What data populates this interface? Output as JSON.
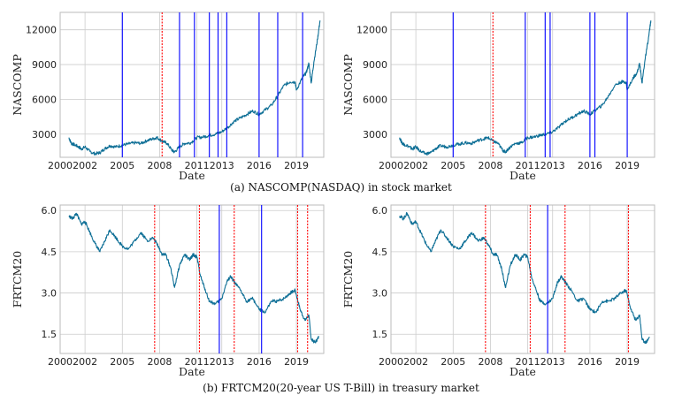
{
  "captions": {
    "a": "(a) NASCOMP(NASDAQ) in stock market",
    "b": "(b) FRTCM20(20-year US T-Bill) in treasury market"
  },
  "colors": {
    "series": "#1f77b4",
    "line_series": "#0e6f96",
    "blue_marker": "#0000ff",
    "red_marker": "#ff0000",
    "grid": "#cccccc"
  },
  "chart_data": [
    {
      "type": "line",
      "title": "",
      "xlabel": "Date",
      "ylabel": "NASCOMP",
      "xlim": [
        2000,
        2021.2
      ],
      "ylim": [
        1000,
        13500
      ],
      "x_ticks": [
        2000,
        2002,
        2005,
        2008,
        2011,
        2013,
        2016,
        2019
      ],
      "y_ticks": [
        3000,
        6000,
        9000,
        12000
      ],
      "series": [
        {
          "name": "NASCOMP",
          "x": [
            2000.7,
            2000.9,
            2001.1,
            2001.5,
            2001.7,
            2002.0,
            2002.4,
            2002.8,
            2003.2,
            2003.6,
            2004.0,
            2004.5,
            2005.0,
            2005.5,
            2006.0,
            2006.5,
            2007.0,
            2007.5,
            2007.8,
            2008.2,
            2008.6,
            2009.0,
            2009.2,
            2009.6,
            2010.0,
            2010.5,
            2011.0,
            2011.5,
            2012.0,
            2012.5,
            2013.0,
            2013.5,
            2014.0,
            2014.5,
            2015.0,
            2015.5,
            2016.0,
            2016.5,
            2017.0,
            2017.5,
            2018.0,
            2018.5,
            2018.9,
            2019.0,
            2019.5,
            2019.8,
            2020.0,
            2020.2,
            2020.4,
            2020.7,
            2020.9
          ],
          "values": [
            2700,
            2200,
            2100,
            1900,
            1700,
            1900,
            1500,
            1300,
            1400,
            1750,
            2000,
            1900,
            2050,
            2150,
            2250,
            2200,
            2450,
            2600,
            2700,
            2400,
            2200,
            1600,
            1450,
            1900,
            2200,
            2250,
            2700,
            2750,
            2900,
            3000,
            3200,
            3600,
            4100,
            4400,
            4700,
            5000,
            4700,
            5100,
            5500,
            6300,
            7200,
            7500,
            7500,
            6800,
            7900,
            8300,
            9100,
            7400,
            9200,
            11200,
            12800
          ]
        }
      ],
      "markers": [
        {
          "x": 2005.0,
          "color": "blue"
        },
        {
          "x": 2008.2,
          "color": "red"
        },
        {
          "x": 2009.6,
          "color": "blue"
        },
        {
          "x": 2010.8,
          "color": "blue"
        },
        {
          "x": 2012.0,
          "color": "blue"
        },
        {
          "x": 2012.7,
          "color": "blue"
        },
        {
          "x": 2013.4,
          "color": "blue"
        },
        {
          "x": 2016.0,
          "color": "blue"
        },
        {
          "x": 2017.5,
          "color": "blue"
        },
        {
          "x": 2019.5,
          "color": "blue"
        }
      ]
    },
    {
      "type": "line",
      "title": "",
      "xlabel": "Date",
      "ylabel": "NASCOMP",
      "xlim": [
        2000,
        2021.2
      ],
      "ylim": [
        1000,
        13500
      ],
      "x_ticks": [
        2000,
        2002,
        2005,
        2008,
        2011,
        2013,
        2016,
        2019
      ],
      "y_ticks": [
        3000,
        6000,
        9000,
        12000
      ],
      "series": [
        {
          "name": "NASCOMP",
          "x": [
            2000.7,
            2000.9,
            2001.1,
            2001.5,
            2001.7,
            2002.0,
            2002.4,
            2002.8,
            2003.2,
            2003.6,
            2004.0,
            2004.5,
            2005.0,
            2005.5,
            2006.0,
            2006.5,
            2007.0,
            2007.5,
            2007.8,
            2008.2,
            2008.6,
            2009.0,
            2009.2,
            2009.6,
            2010.0,
            2010.5,
            2011.0,
            2011.5,
            2012.0,
            2012.5,
            2013.0,
            2013.5,
            2014.0,
            2014.5,
            2015.0,
            2015.5,
            2016.0,
            2016.5,
            2017.0,
            2017.5,
            2018.0,
            2018.5,
            2018.9,
            2019.0,
            2019.5,
            2019.8,
            2020.0,
            2020.2,
            2020.4,
            2020.7,
            2020.9
          ],
          "values": [
            2700,
            2200,
            2100,
            1900,
            1700,
            1900,
            1500,
            1300,
            1400,
            1750,
            2000,
            1900,
            2050,
            2150,
            2250,
            2200,
            2450,
            2600,
            2700,
            2400,
            2200,
            1600,
            1450,
            1900,
            2200,
            2250,
            2700,
            2750,
            2900,
            3000,
            3200,
            3600,
            4100,
            4400,
            4700,
            5000,
            4700,
            5100,
            5500,
            6300,
            7200,
            7500,
            7500,
            6800,
            7900,
            8300,
            9100,
            7400,
            9200,
            11200,
            12800
          ]
        }
      ],
      "markers": [
        {
          "x": 2005.0,
          "color": "blue"
        },
        {
          "x": 2008.2,
          "color": "red"
        },
        {
          "x": 2010.8,
          "color": "blue"
        },
        {
          "x": 2012.4,
          "color": "blue"
        },
        {
          "x": 2012.8,
          "color": "blue"
        },
        {
          "x": 2016.0,
          "color": "blue"
        },
        {
          "x": 2016.4,
          "color": "blue"
        },
        {
          "x": 2019.0,
          "color": "blue"
        }
      ]
    },
    {
      "type": "line",
      "title": "",
      "xlabel": "Date",
      "ylabel": "FRTCM20",
      "xlim": [
        2000,
        2021.2
      ],
      "ylim": [
        0.8,
        6.2
      ],
      "x_ticks": [
        2000,
        2002,
        2005,
        2008,
        2011,
        2013,
        2016,
        2019
      ],
      "y_ticks": [
        1.5,
        3.0,
        4.5,
        6.0
      ],
      "y_tick_labels": [
        "1.5",
        "3.0",
        "4.5",
        "6.0"
      ],
      "series": [
        {
          "name": "FRTCM20",
          "x": [
            2000.7,
            2001.0,
            2001.3,
            2001.7,
            2002.0,
            2002.4,
            2002.8,
            2003.2,
            2003.6,
            2004.0,
            2004.5,
            2005.0,
            2005.5,
            2006.0,
            2006.5,
            2007.0,
            2007.5,
            2007.9,
            2008.2,
            2008.5,
            2008.9,
            2009.2,
            2009.6,
            2010.0,
            2010.4,
            2010.7,
            2011.0,
            2011.3,
            2011.6,
            2012.0,
            2012.5,
            2013.0,
            2013.4,
            2013.7,
            2014.0,
            2014.5,
            2015.0,
            2015.5,
            2016.0,
            2016.5,
            2017.0,
            2017.5,
            2018.0,
            2018.5,
            2018.9,
            2019.3,
            2019.7,
            2020.0,
            2020.2,
            2020.5,
            2020.8
          ],
          "values": [
            5.8,
            5.7,
            5.9,
            5.5,
            5.6,
            5.2,
            4.8,
            4.5,
            4.9,
            5.3,
            5.0,
            4.7,
            4.6,
            4.9,
            5.2,
            4.9,
            5.0,
            4.7,
            4.4,
            4.4,
            3.9,
            3.2,
            4.0,
            4.4,
            4.2,
            4.4,
            4.3,
            3.6,
            3.2,
            2.7,
            2.6,
            2.8,
            3.4,
            3.6,
            3.4,
            3.1,
            2.7,
            2.8,
            2.4,
            2.3,
            2.7,
            2.7,
            2.8,
            3.0,
            3.1,
            2.4,
            2.0,
            2.2,
            1.3,
            1.2,
            1.4
          ]
        }
      ],
      "markers": [
        {
          "x": 2007.6,
          "color": "red"
        },
        {
          "x": 2011.2,
          "color": "red"
        },
        {
          "x": 2012.8,
          "color": "blue"
        },
        {
          "x": 2014.0,
          "color": "red"
        },
        {
          "x": 2016.2,
          "color": "blue"
        },
        {
          "x": 2019.1,
          "color": "red"
        },
        {
          "x": 2019.9,
          "color": "red"
        }
      ]
    },
    {
      "type": "line",
      "title": "",
      "xlabel": "Date",
      "ylabel": "FRTCM20",
      "xlim": [
        2000,
        2021.2
      ],
      "ylim": [
        0.8,
        6.2
      ],
      "x_ticks": [
        2000,
        2002,
        2005,
        2008,
        2011,
        2013,
        2016,
        2019
      ],
      "y_ticks": [
        1.5,
        3.0,
        4.5,
        6.0
      ],
      "y_tick_labels": [
        "1.5",
        "3.0",
        "4.5",
        "6.0"
      ],
      "series": [
        {
          "name": "FRTCM20",
          "x": [
            2000.7,
            2001.0,
            2001.3,
            2001.7,
            2002.0,
            2002.4,
            2002.8,
            2003.2,
            2003.6,
            2004.0,
            2004.5,
            2005.0,
            2005.5,
            2006.0,
            2006.5,
            2007.0,
            2007.5,
            2007.9,
            2008.2,
            2008.5,
            2008.9,
            2009.2,
            2009.6,
            2010.0,
            2010.4,
            2010.7,
            2011.0,
            2011.3,
            2011.6,
            2012.0,
            2012.5,
            2013.0,
            2013.4,
            2013.7,
            2014.0,
            2014.5,
            2015.0,
            2015.5,
            2016.0,
            2016.5,
            2017.0,
            2017.5,
            2018.0,
            2018.5,
            2018.9,
            2019.3,
            2019.7,
            2020.0,
            2020.2,
            2020.5,
            2020.8
          ],
          "values": [
            5.8,
            5.7,
            5.9,
            5.5,
            5.6,
            5.2,
            4.8,
            4.5,
            4.9,
            5.3,
            5.0,
            4.7,
            4.6,
            4.9,
            5.2,
            4.9,
            5.0,
            4.7,
            4.4,
            4.4,
            3.9,
            3.2,
            4.0,
            4.4,
            4.2,
            4.4,
            4.3,
            3.6,
            3.2,
            2.7,
            2.6,
            2.8,
            3.4,
            3.6,
            3.4,
            3.1,
            2.7,
            2.8,
            2.4,
            2.3,
            2.7,
            2.7,
            2.8,
            3.0,
            3.1,
            2.4,
            2.0,
            2.2,
            1.3,
            1.2,
            1.4
          ]
        }
      ],
      "markers": [
        {
          "x": 2007.6,
          "color": "red"
        },
        {
          "x": 2011.2,
          "color": "red"
        },
        {
          "x": 2012.6,
          "color": "blue"
        },
        {
          "x": 2014.0,
          "color": "red"
        },
        {
          "x": 2019.1,
          "color": "red"
        }
      ]
    }
  ]
}
